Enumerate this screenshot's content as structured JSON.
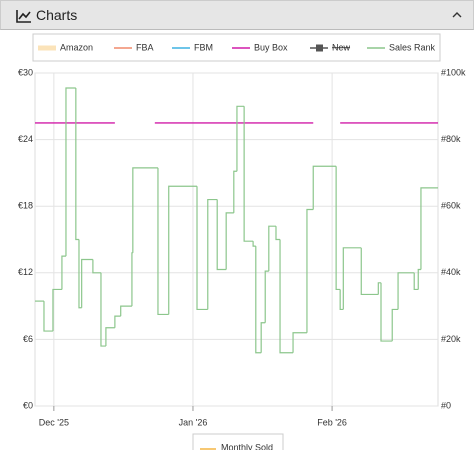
{
  "header": {
    "title": "Charts"
  },
  "chart_data": {
    "type": "step",
    "xlim": [
      -4.2,
      85.6
    ],
    "xticks": [
      {
        "value": 0,
        "label": "Dec '25"
      },
      {
        "value": 31,
        "label": "Jan '26"
      },
      {
        "value": 62,
        "label": "Feb '26"
      }
    ],
    "ylim": [
      0,
      30
    ],
    "yticks": [
      {
        "value": 0,
        "label": "€0"
      },
      {
        "value": 6,
        "label": "€6"
      },
      {
        "value": 12,
        "label": "€12"
      },
      {
        "value": 18,
        "label": "€18"
      },
      {
        "value": 24,
        "label": "€24"
      },
      {
        "value": 30,
        "label": "€30"
      }
    ],
    "y2lim": [
      0,
      100000
    ],
    "y2ticks": [
      {
        "value": 0,
        "label": "#0"
      },
      {
        "value": 20000,
        "label": "#20k"
      },
      {
        "value": 40000,
        "label": "#40k"
      },
      {
        "value": 60000,
        "label": "#60k"
      },
      {
        "value": 80000,
        "label": "#80k"
      },
      {
        "value": 100000,
        "label": "#100k"
      }
    ],
    "grid": true,
    "series": [
      {
        "name": "Amazon",
        "color": "#f7c873"
      },
      {
        "name": "FBA",
        "color": "#f08a6c"
      },
      {
        "name": "FBM",
        "color": "#3fb2e2"
      },
      {
        "name": "Buy Box",
        "color": "#d11ca8",
        "x": [
          -4.2,
          13.6,
          18,
          22.5,
          57.8,
          60,
          63.8,
          85.6
        ],
        "values": [
          25.5,
          25.5,
          null,
          25.5,
          25.5,
          null,
          25.5,
          25.5
        ]
      },
      {
        "name": "New",
        "color": "#555555"
      },
      {
        "name": "Sales Rank",
        "color": "#8cc68c",
        "axis": "y2",
        "x": [
          -4.2,
          -2.2,
          -0.2,
          1.8,
          2.7,
          4.9,
          5.6,
          6.2,
          8.7,
          10.5,
          11.6,
          13.6,
          14.9,
          17.4,
          17.6,
          23.2,
          25.6,
          31.9,
          34.3,
          36.4,
          38.4,
          40.1,
          40.8,
          42.4,
          44.4,
          45.0,
          46.2,
          47.1,
          47.9,
          49.5,
          50.4,
          53.3,
          56.4,
          57.8,
          62.9,
          63.8,
          64.5,
          68.5,
          72.3,
          72.9,
          75.4,
          76.7,
          80.3,
          81.2,
          81.8,
          85.6
        ],
        "values": [
          31500,
          22500,
          35000,
          45000,
          95500,
          50000,
          29500,
          44000,
          40000,
          18000,
          23500,
          27000,
          30000,
          46000,
          71500,
          27500,
          66000,
          29000,
          62000,
          41000,
          58000,
          70500,
          90000,
          49500,
          48000,
          16000,
          25000,
          40500,
          54000,
          50000,
          16000,
          22000,
          59000,
          72000,
          35000,
          29000,
          47500,
          33500,
          37000,
          19500,
          29000,
          40000,
          35000,
          41000,
          65500,
          65500
        ]
      }
    ],
    "bottom_legend": "Monthly Sold"
  }
}
